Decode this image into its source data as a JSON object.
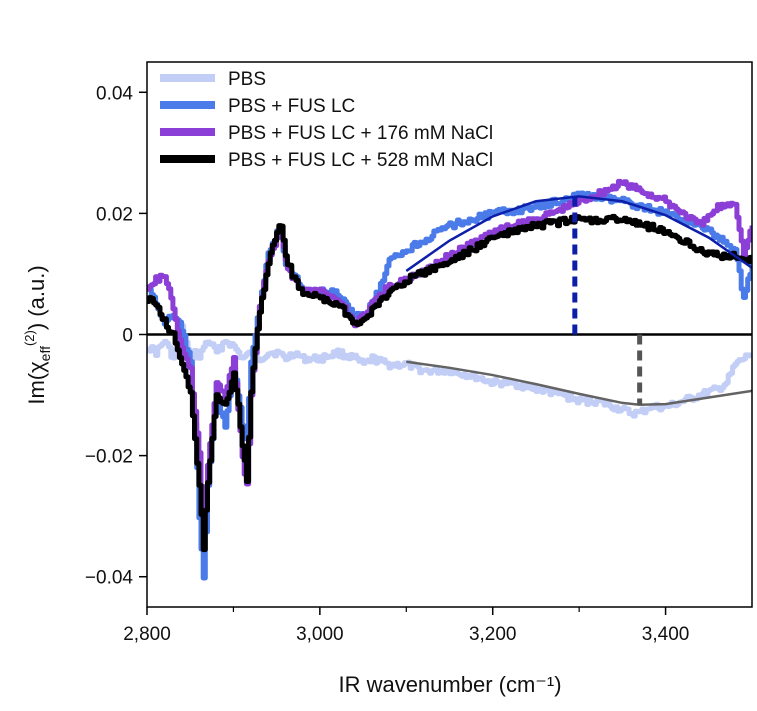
{
  "chart_data": {
    "type": "line",
    "xlabel": "IR wavenumber (cm⁻¹)",
    "ylabel_parts": {
      "base": "Im(χ",
      "sub": "eff",
      "sup": "(2)",
      "tail": ") (a.u.)"
    },
    "xlim": [
      2800,
      3500
    ],
    "ylim": [
      -0.045,
      0.045
    ],
    "x_ticks": [
      2800,
      3000,
      3200,
      3400
    ],
    "x_minor_ticks": [
      2900,
      3100,
      3300
    ],
    "x_tick_labels": [
      "2,800",
      "3,000",
      "3,200",
      "3,400"
    ],
    "y_ticks": [
      0.04,
      0.02,
      0,
      -0.02,
      -0.04
    ],
    "y_tick_labels": [
      "0.04",
      "0.02",
      "0",
      "−0.02",
      "−0.04"
    ],
    "zero_line": true,
    "legend_position": "top-left",
    "series": [
      {
        "name": "PBS",
        "color": "#c2cef5",
        "x": [
          2800,
          2810,
          2820,
          2830,
          2840,
          2850,
          2855,
          2860,
          2865,
          2870,
          2880,
          2890,
          2900,
          2910,
          2920,
          2930,
          2940,
          2950,
          2960,
          2970,
          2980,
          3000,
          3020,
          3040,
          3050,
          3060,
          3080,
          3100,
          3120,
          3150,
          3180,
          3200,
          3220,
          3250,
          3280,
          3300,
          3320,
          3340,
          3360,
          3370,
          3380,
          3400,
          3420,
          3440,
          3460,
          3470,
          3480,
          3490,
          3500
        ],
        "y": [
          -0.002,
          -0.003,
          -0.001,
          -0.004,
          0.001,
          -0.004,
          -0.003,
          -0.004,
          -0.002,
          -0.001,
          -0.003,
          -0.001,
          -0.002,
          -0.004,
          -0.003,
          -0.004,
          -0.003,
          -0.003,
          -0.004,
          -0.003,
          -0.004,
          -0.004,
          -0.003,
          -0.004,
          -0.005,
          -0.004,
          -0.005,
          -0.005,
          -0.006,
          -0.006,
          -0.007,
          -0.008,
          -0.008,
          -0.009,
          -0.01,
          -0.011,
          -0.011,
          -0.012,
          -0.013,
          -0.013,
          -0.012,
          -0.012,
          -0.011,
          -0.01,
          -0.009,
          -0.008,
          -0.005,
          -0.004,
          -0.003
        ]
      },
      {
        "name": "PBS + FUS LC",
        "color": "#4a7be8",
        "x": [
          2800,
          2810,
          2820,
          2830,
          2840,
          2850,
          2855,
          2860,
          2865,
          2870,
          2880,
          2890,
          2900,
          2910,
          2915,
          2920,
          2930,
          2940,
          2950,
          2955,
          2960,
          2970,
          2980,
          3000,
          3020,
          3040,
          3050,
          3060,
          3070,
          3080,
          3100,
          3150,
          3200,
          3250,
          3300,
          3350,
          3400,
          3440,
          3460,
          3480,
          3490,
          3500
        ],
        "y": [
          0.008,
          0.005,
          0.002,
          0.003,
          0.001,
          -0.005,
          -0.015,
          -0.03,
          -0.04,
          -0.025,
          -0.01,
          -0.015,
          -0.005,
          -0.015,
          -0.017,
          -0.005,
          0.005,
          0.013,
          0.017,
          0.016,
          0.012,
          0.01,
          0.007,
          0.007,
          0.007,
          0.003,
          0.003,
          0.005,
          0.008,
          0.012,
          0.014,
          0.018,
          0.02,
          0.021,
          0.023,
          0.022,
          0.02,
          0.018,
          0.016,
          0.014,
          0.006,
          0.012
        ]
      },
      {
        "name": "PBS + FUS LC + 176 mM NaCl",
        "color": "#8c3fd6",
        "x": [
          2800,
          2810,
          2820,
          2830,
          2840,
          2850,
          2860,
          2865,
          2870,
          2880,
          2890,
          2900,
          2910,
          2915,
          2920,
          2930,
          2940,
          2950,
          2955,
          2960,
          2970,
          2980,
          3000,
          3020,
          3040,
          3050,
          3060,
          3080,
          3100,
          3150,
          3200,
          3250,
          3300,
          3350,
          3400,
          3440,
          3460,
          3480,
          3490,
          3500
        ],
        "y": [
          0.008,
          0.009,
          0.01,
          0.004,
          -0.002,
          -0.006,
          -0.02,
          -0.03,
          -0.022,
          -0.008,
          -0.01,
          -0.004,
          -0.02,
          -0.025,
          -0.01,
          0.005,
          0.012,
          0.016,
          0.016,
          0.012,
          0.009,
          0.007,
          0.007,
          0.006,
          0.002,
          0.003,
          0.005,
          0.008,
          0.009,
          0.013,
          0.017,
          0.019,
          0.022,
          0.025,
          0.022,
          0.018,
          0.021,
          0.022,
          0.013,
          0.018
        ]
      },
      {
        "name": "PBS + FUS LC + 528 mM NaCl",
        "color": "#000000",
        "x": [
          2800,
          2810,
          2820,
          2830,
          2840,
          2850,
          2860,
          2865,
          2870,
          2880,
          2890,
          2900,
          2910,
          2915,
          2920,
          2930,
          2940,
          2950,
          2955,
          2960,
          2970,
          2980,
          3000,
          3020,
          3040,
          3050,
          3060,
          3080,
          3100,
          3150,
          3200,
          3250,
          3300,
          3350,
          3400,
          3440,
          3460,
          3480,
          3490,
          3500
        ],
        "y": [
          0.006,
          0.005,
          0.002,
          0.0,
          -0.005,
          -0.01,
          -0.025,
          -0.035,
          -0.024,
          -0.01,
          -0.012,
          -0.006,
          -0.018,
          -0.024,
          -0.009,
          0.004,
          0.012,
          0.017,
          0.018,
          0.013,
          0.009,
          0.007,
          0.006,
          0.005,
          0.002,
          0.002,
          0.004,
          0.007,
          0.009,
          0.012,
          0.016,
          0.018,
          0.019,
          0.019,
          0.017,
          0.014,
          0.013,
          0.013,
          0.012,
          0.013
        ]
      }
    ],
    "fits": [
      {
        "color": "#0d1fa8",
        "x": [
          3100,
          3150,
          3200,
          3250,
          3300,
          3350,
          3400,
          3450,
          3500
        ],
        "y": [
          0.0105,
          0.0155,
          0.0195,
          0.022,
          0.0228,
          0.022,
          0.0197,
          0.016,
          0.011
        ]
      },
      {
        "color": "#636363",
        "x": [
          3100,
          3150,
          3200,
          3250,
          3300,
          3350,
          3370,
          3400,
          3450,
          3500
        ],
        "y": [
          -0.0045,
          -0.0055,
          -0.0067,
          -0.0082,
          -0.0098,
          -0.0113,
          -0.0116,
          -0.0115,
          -0.0104,
          -0.0093
        ]
      }
    ],
    "peak_markers": [
      {
        "x": 3295,
        "y_from": 0,
        "y_to": 0.0228,
        "color": "#0d1fa8"
      },
      {
        "x": 3370,
        "y_from": 0,
        "y_to": -0.0116,
        "color": "#555555"
      }
    ]
  }
}
